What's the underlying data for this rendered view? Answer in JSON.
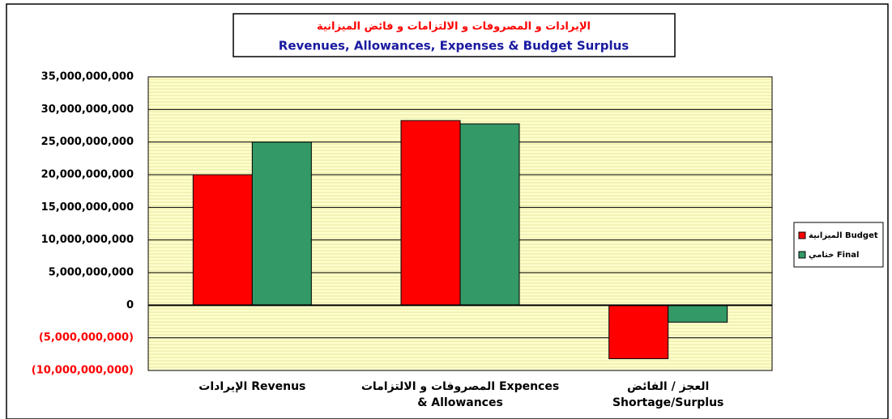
{
  "chart_data": {
    "type": "bar",
    "title": [
      "الإيرادات و المصروفات و الالتزامات و فائض الميزانية",
      "Revenues, Allowances, Expenses & Budget  Surplus"
    ],
    "categories": [
      [
        "الإيرادات Revenus"
      ],
      [
        "المصروفات و الالتزامات Expences",
        "& Allowances"
      ],
      [
        "العجز / الفائض",
        "Shortage/Surplus"
      ]
    ],
    "series": [
      {
        "name": "الميزانية Budget",
        "color": "#ff0000",
        "values": [
          20000000000,
          28300000000,
          -8200000000
        ]
      },
      {
        "name": "ختامي Final",
        "color": "#339966",
        "values": [
          25000000000,
          27800000000,
          -2600000000
        ]
      }
    ],
    "ylim": [
      -10000000000,
      35000000000
    ],
    "yticks": [
      {
        "value": -10000000000,
        "label": "(10,000,000,000)"
      },
      {
        "value": -5000000000,
        "label": "(5,000,000,000)"
      },
      0,
      {
        "value": 5000000000,
        "label": "5,000,000,000"
      },
      {
        "value": 10000000000,
        "label": "10,000,000,000"
      },
      {
        "value": 15000000000,
        "label": "15,000,000,000"
      },
      {
        "value": 20000000000,
        "label": "20,000,000,000"
      },
      {
        "value": 25000000000,
        "label": "25,000,000,000"
      },
      {
        "value": 30000000000,
        "label": "30,000,000,000"
      },
      {
        "value": 35000000000,
        "label": "35,000,000,000"
      }
    ],
    "grid": true,
    "legend": "right"
  }
}
